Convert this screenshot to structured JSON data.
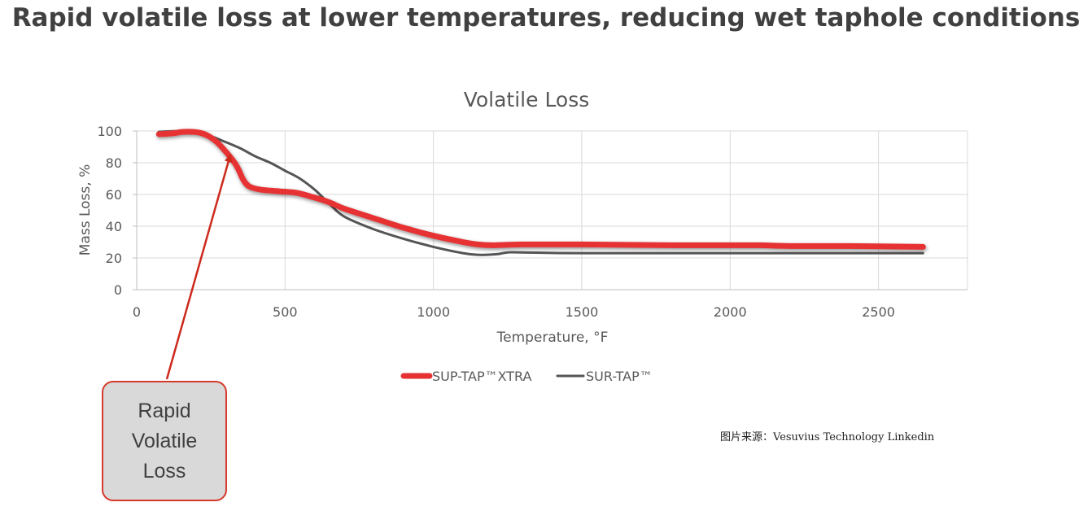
{
  "headline": "Rapid volatile loss at lower temperatures, reducing wet taphole conditions",
  "callout": "Rapid Volatile Loss",
  "source": "图片来源：Vesuvius Technology Linkedin",
  "colors": {
    "sup_tap_xtra": "#e63232",
    "sur_tap": "#555555",
    "callout_border": "#d63a2c",
    "callout_fill": "#d9d9d9",
    "arrow": "#cc2a1c"
  },
  "chart_data": {
    "type": "line",
    "title": "Volatile Loss",
    "xlabel": "Temperature, °F",
    "ylabel": "Mass Loss, %",
    "xlim": [
      0,
      2800
    ],
    "ylim": [
      0,
      100
    ],
    "xticks": [
      0,
      500,
      1000,
      1500,
      2000,
      2500
    ],
    "yticks": [
      0,
      20,
      40,
      60,
      80,
      100
    ],
    "grid": true,
    "legend_position": "bottom",
    "series": [
      {
        "name": "SUP-TAP™XTRA",
        "x": [
          75,
          120,
          160,
          210,
          240,
          270,
          300,
          330,
          345,
          360,
          380,
          420,
          480,
          540,
          600,
          650,
          700,
          800,
          900,
          1000,
          1100,
          1150,
          1200,
          1300,
          1500,
          1800,
          2000,
          2100,
          2200,
          2400,
          2650
        ],
        "y": [
          98,
          98.5,
          99.5,
          99,
          97,
          93,
          87,
          80,
          75,
          69,
          65,
          63,
          62,
          61,
          58,
          55,
          51,
          45,
          39,
          34,
          30,
          28.5,
          28,
          28.5,
          28.5,
          28,
          28,
          28,
          27.5,
          27.5,
          27
        ]
      },
      {
        "name": "SUR-TAP™",
        "x": [
          75,
          150,
          200,
          230,
          260,
          300,
          350,
          400,
          450,
          500,
          550,
          600,
          650,
          700,
          800,
          900,
          1000,
          1100,
          1150,
          1180,
          1220,
          1250,
          1300,
          1500,
          2000,
          2650
        ],
        "y": [
          99.5,
          100,
          99.5,
          98,
          96,
          93,
          89,
          84,
          80,
          75,
          70,
          63,
          54,
          46,
          38,
          32,
          27,
          23,
          22,
          22,
          22.5,
          23.5,
          23.5,
          23,
          23,
          23
        ]
      }
    ]
  }
}
